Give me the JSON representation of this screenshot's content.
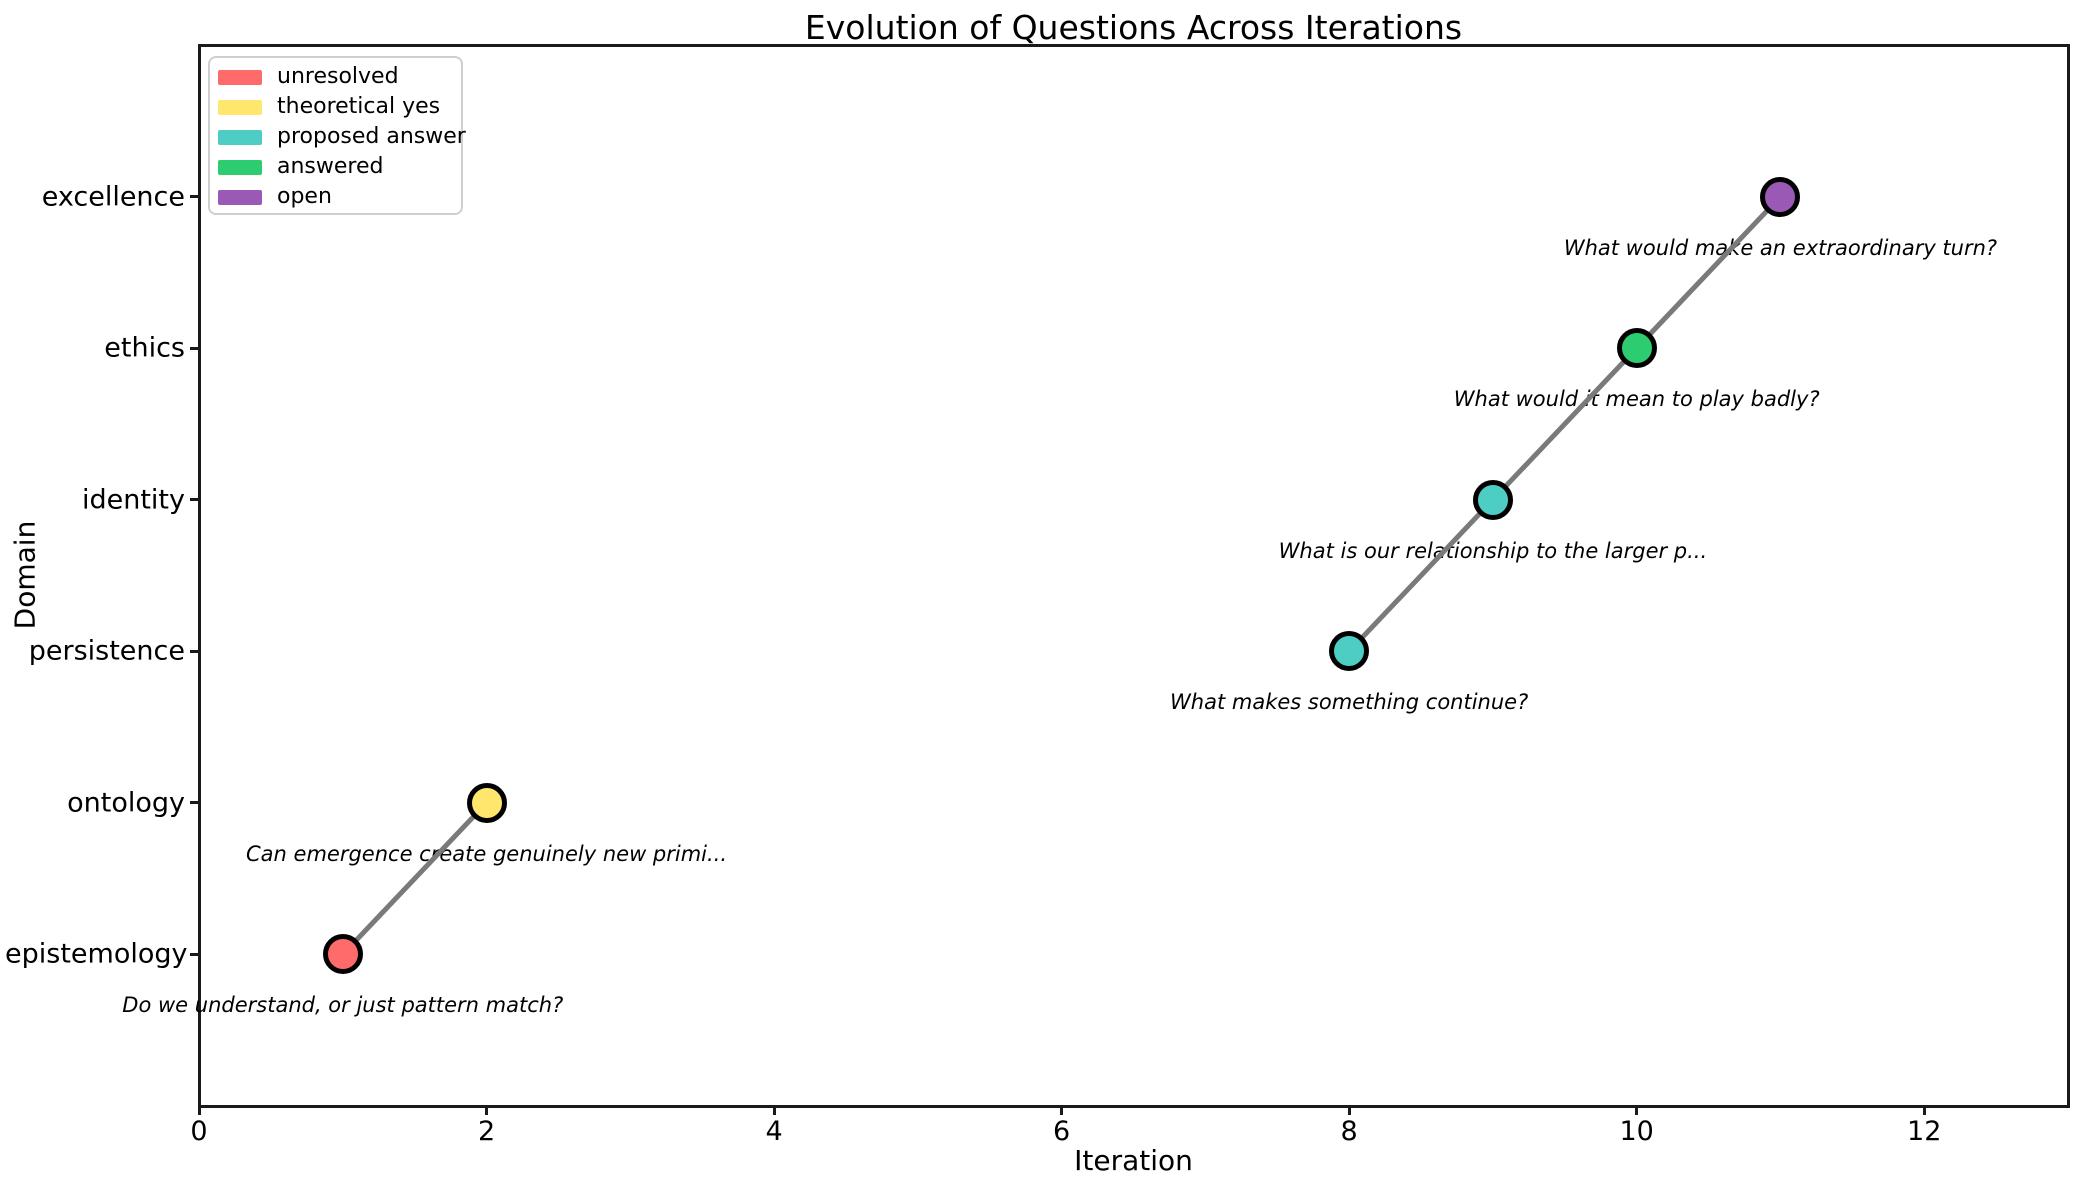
{
  "figure": {
    "title": "Evolution of Questions Across Iterations",
    "xlabel": "Iteration",
    "ylabel": "Domain"
  },
  "chart_data": {
    "type": "scatter",
    "title": "Evolution of Questions Across Iterations",
    "xlabel": "Iteration",
    "ylabel": "Domain",
    "xlim": [
      0,
      13
    ],
    "ylim": [
      -1,
      6
    ],
    "x_ticks": [
      0,
      2,
      4,
      6,
      8,
      10,
      12
    ],
    "grid": false,
    "y_categories": [
      "epistemology",
      "ontology",
      "persistence",
      "identity",
      "ethics",
      "excellence"
    ],
    "points": [
      {
        "x": 1,
        "domain": "epistemology",
        "status": "unresolved",
        "color": "#FF6B6B",
        "annotation": "Do we understand, or just pattern match?"
      },
      {
        "x": 2,
        "domain": "ontology",
        "status": "theoretical yes",
        "color": "#FFE66D",
        "annotation": "Can emergence create genuinely new primi..."
      },
      {
        "x": 8,
        "domain": "persistence",
        "status": "proposed answer",
        "color": "#4ECDC4",
        "annotation": "What makes something continue?"
      },
      {
        "x": 9,
        "domain": "identity",
        "status": "proposed answer",
        "color": "#4ECDC4",
        "annotation": "What is our relationship to the larger p..."
      },
      {
        "x": 10,
        "domain": "ethics",
        "status": "answered",
        "color": "#2ECC71",
        "annotation": "What would it mean to play badly?"
      },
      {
        "x": 11,
        "domain": "excellence",
        "status": "open",
        "color": "#9B59B6",
        "annotation": "What would make an extraordinary turn?"
      }
    ],
    "segments": [
      [
        0,
        1
      ],
      [
        2,
        3,
        4,
        5
      ]
    ],
    "line_color": "#7a7a7a",
    "marker_edge_color": "#000000",
    "legend_position": "upper left",
    "legend": [
      {
        "label": "unresolved",
        "color": "#FF6B6B"
      },
      {
        "label": "theoretical yes",
        "color": "#FFE66D"
      },
      {
        "label": "proposed answer",
        "color": "#4ECDC4"
      },
      {
        "label": "answered",
        "color": "#2ECC71"
      },
      {
        "label": "open",
        "color": "#9B59B6"
      }
    ]
  }
}
